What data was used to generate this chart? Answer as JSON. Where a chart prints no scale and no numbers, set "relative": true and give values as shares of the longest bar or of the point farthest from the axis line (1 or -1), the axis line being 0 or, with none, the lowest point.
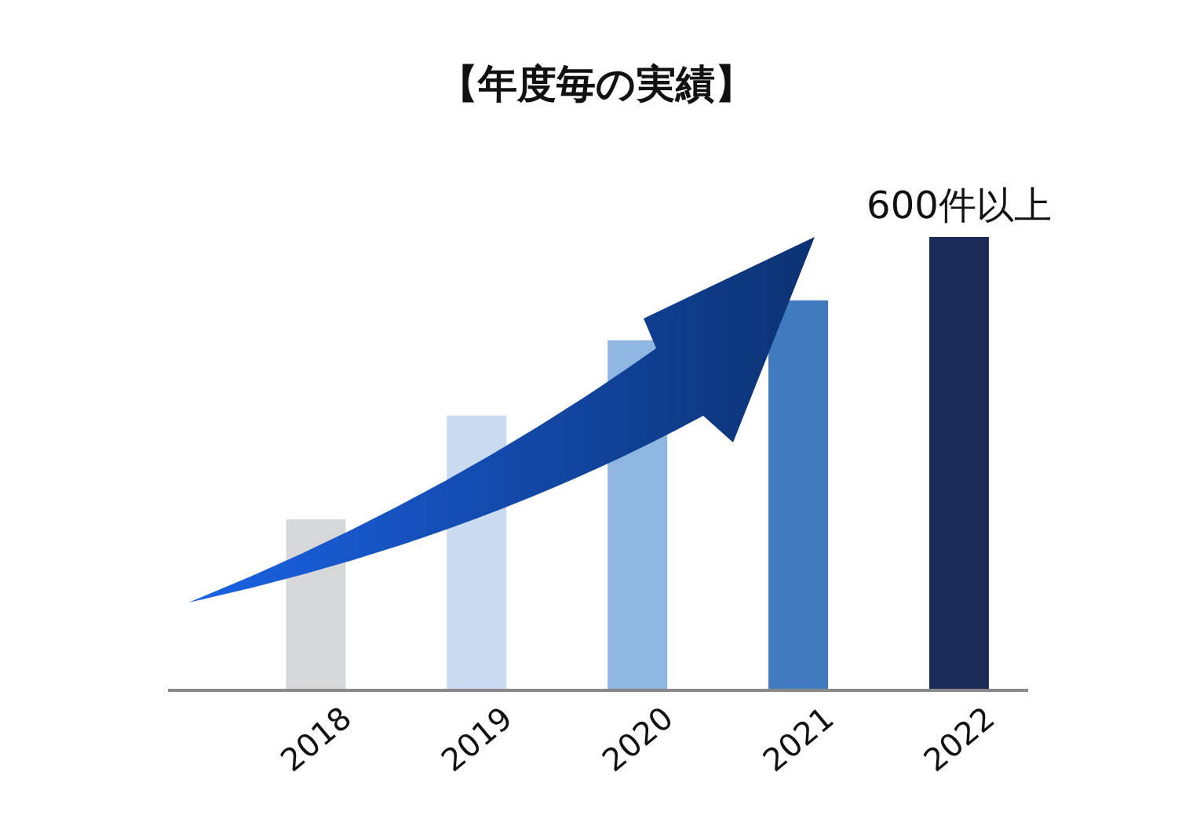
{
  "chart_data": {
    "type": "bar",
    "title": "【年度毎の実績】",
    "relative": true,
    "categories": [
      "2018",
      "2019",
      "2020",
      "2021",
      "2022"
    ],
    "series": [
      {
        "values": [
          0.377,
          0.606,
          0.772,
          0.86,
          1
        ],
        "colors": [
          "#d6d7d9",
          "#c9daf1",
          "#8fb5e1",
          "#407bc0",
          "#1b2a56"
        ]
      }
    ],
    "annotations": [
      {
        "text": "600件以上",
        "x": "2022",
        "y": 1
      }
    ]
  }
}
